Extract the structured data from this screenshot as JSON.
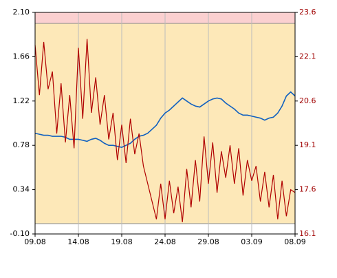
{
  "chart_data": {
    "type": "line",
    "x": [
      0,
      0.5,
      1,
      1.5,
      2,
      2.5,
      3,
      3.5,
      4,
      4.5,
      5,
      5.5,
      6,
      6.5,
      7,
      7.5,
      8,
      8.5,
      9,
      9.5,
      10,
      10.5,
      11,
      11.5,
      12,
      12.5,
      13,
      13.5,
      14,
      14.5,
      15,
      15.5,
      16,
      16.5,
      17,
      17.5,
      18,
      18.5,
      19,
      19.5,
      20,
      20.5,
      21,
      21.5,
      22,
      22.5,
      23,
      23.5,
      24,
      24.5,
      25,
      25.5,
      26,
      26.5,
      27,
      27.5,
      28,
      28.5,
      29,
      29.5,
      30
    ],
    "xlim": [
      0,
      30
    ],
    "xticks": [
      {
        "value": 0,
        "label": "09.08"
      },
      {
        "value": 5,
        "label": "14.08"
      },
      {
        "value": 10,
        "label": "19.08"
      },
      {
        "value": 15,
        "label": "24.08"
      },
      {
        "value": 20,
        "label": "29.08"
      },
      {
        "value": 25,
        "label": "03.09"
      },
      {
        "value": 30,
        "label": "08.09"
      }
    ],
    "ylim": [
      -0.1,
      2.1
    ],
    "yticks": [
      {
        "value": -0.1,
        "label": "-0.10"
      },
      {
        "value": 0.34,
        "label": "0.34"
      },
      {
        "value": 0.78,
        "label": "0.78"
      },
      {
        "value": 1.22,
        "label": "1.22"
      },
      {
        "value": 1.66,
        "label": "1.66"
      },
      {
        "value": 2.1,
        "label": "2.10"
      }
    ],
    "y2lim": [
      16.1,
      23.6
    ],
    "y2ticks": [
      16.1,
      17.6,
      19.1,
      20.6,
      22.1,
      23.6
    ],
    "grid": true,
    "series": [
      {
        "color": "#1060c0",
        "axis": "y",
        "values": [
          0.9,
          0.89,
          0.88,
          0.88,
          0.87,
          0.87,
          0.87,
          0.86,
          0.84,
          0.84,
          0.84,
          0.83,
          0.82,
          0.84,
          0.85,
          0.83,
          0.8,
          0.78,
          0.78,
          0.77,
          0.76,
          0.78,
          0.8,
          0.84,
          0.87,
          0.88,
          0.9,
          0.94,
          0.98,
          1.05,
          1.1,
          1.13,
          1.17,
          1.21,
          1.25,
          1.22,
          1.19,
          1.17,
          1.16,
          1.19,
          1.22,
          1.24,
          1.25,
          1.24,
          1.2,
          1.17,
          1.14,
          1.1,
          1.08,
          1.08,
          1.07,
          1.06,
          1.05,
          1.03,
          1.05,
          1.06,
          1.1,
          1.17,
          1.27,
          1.31,
          1.27
        ]
      },
      {
        "color": "#b00000",
        "axis": "y2",
        "values": [
          22.5,
          20.8,
          22.6,
          21.0,
          21.6,
          19.5,
          21.2,
          19.2,
          20.8,
          19.0,
          22.4,
          20.0,
          22.7,
          20.2,
          21.4,
          19.8,
          20.8,
          19.3,
          20.2,
          18.6,
          19.8,
          18.5,
          20.0,
          18.8,
          19.5,
          18.4,
          17.8,
          17.2,
          16.6,
          17.8,
          16.6,
          17.9,
          16.8,
          17.7,
          16.5,
          18.3,
          17.0,
          18.6,
          17.2,
          19.4,
          17.8,
          19.2,
          17.5,
          18.9,
          18.0,
          19.1,
          17.8,
          19.0,
          17.4,
          18.6,
          17.9,
          18.4,
          17.2,
          18.2,
          17.0,
          18.1,
          16.6,
          17.9,
          16.7,
          17.6,
          17.5
        ]
      }
    ]
  }
}
